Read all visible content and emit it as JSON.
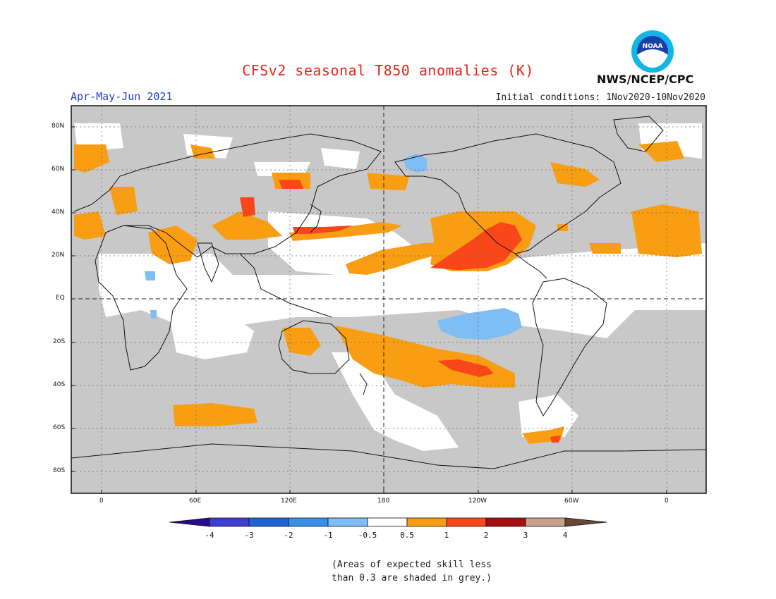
{
  "header": {
    "title": "CFSv2 seasonal T850 anomalies (K)",
    "period": "Apr-May-Jun 2021",
    "initial_conditions": "Initial conditions: 1Nov2020-10Nov2020",
    "agency": "NWS/NCEP/CPC",
    "logo_text": "NOAA"
  },
  "map": {
    "lat_labels": [
      "80N",
      "60N",
      "40N",
      "20N",
      "EQ",
      "20S",
      "40S",
      "60S",
      "80S"
    ],
    "lon_labels": [
      "0",
      "60E",
      "120E",
      "180",
      "120W",
      "60W",
      "0"
    ]
  },
  "colorbar": {
    "labels": [
      "-4",
      "-3",
      "-2",
      "-1",
      "-0.5",
      "0.5",
      "1",
      "2",
      "3",
      "4"
    ],
    "colors": [
      "#2a0a8c",
      "#3d3dcf",
      "#1f64d6",
      "#3a8ee8",
      "#7fbdf5",
      "#ffffff",
      "#f99d12",
      "#f9471a",
      "#a50f0f",
      "#c8a08c",
      "#6b4535"
    ]
  },
  "note": {
    "line1": "(Areas of expected skill less",
    "line2": "than 0.3 are shaded in grey.)"
  },
  "colors": {
    "grey_low_skill": "#c8c8c8",
    "orange": "#f99d12",
    "red": "#f9471a",
    "blue": "#7fbdf5",
    "title": "#e8231c",
    "period": "#1f3fd6"
  }
}
